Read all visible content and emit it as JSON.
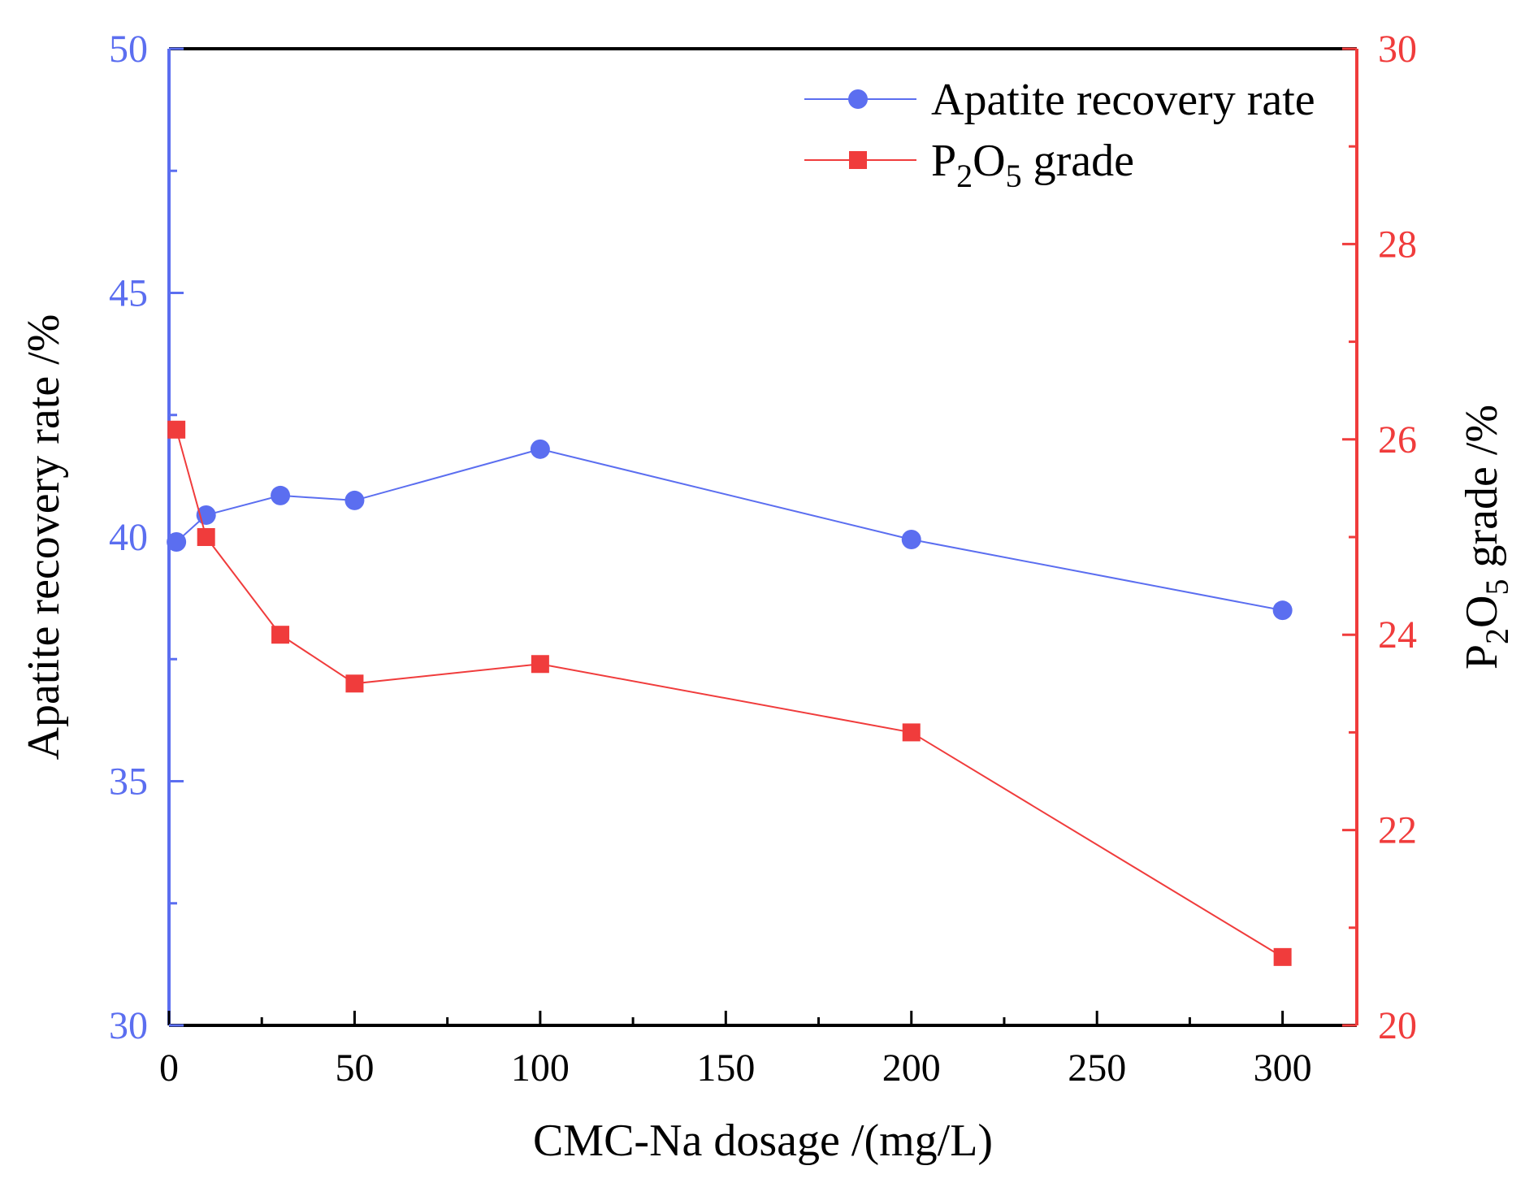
{
  "chart_data": {
    "type": "line",
    "xlabel": "CMC-Na dosage /(mg/L)",
    "xlim": [
      0,
      320
    ],
    "x_ticks": [
      0,
      50,
      100,
      150,
      200,
      250,
      300
    ],
    "y_left": {
      "label": "Apatite recovery rate /%",
      "lim": [
        30,
        50
      ],
      "ticks": [
        30,
        35,
        40,
        45,
        50
      ],
      "color": "#5b6ef0"
    },
    "y_right": {
      "label_parts": {
        "base": "P",
        "sub1": "2",
        "mid": "O",
        "sub2": "5",
        "rest": " grade /%"
      },
      "lim": [
        20,
        30
      ],
      "ticks": [
        20,
        22,
        24,
        26,
        28,
        30
      ],
      "color": "#f03c3c"
    },
    "series": [
      {
        "name": "Apatite recovery rate",
        "axis": "left",
        "marker": "circle",
        "color": "#5b6ef0",
        "x": [
          2,
          10,
          30,
          50,
          100,
          200,
          300
        ],
        "y": [
          39.9,
          40.45,
          40.85,
          40.75,
          41.8,
          39.95,
          38.5
        ]
      },
      {
        "name": "P2O5 grade",
        "name_parts": {
          "base": "P",
          "sub1": "2",
          "mid": "O",
          "sub2": "5",
          "rest": " grade"
        },
        "axis": "right",
        "marker": "square",
        "color": "#f03c3c",
        "x": [
          2,
          10,
          30,
          50,
          100,
          200,
          300
        ],
        "y": [
          26.1,
          25.0,
          24.0,
          23.5,
          23.7,
          23.0,
          20.7
        ]
      }
    ],
    "legend": "top-right"
  }
}
